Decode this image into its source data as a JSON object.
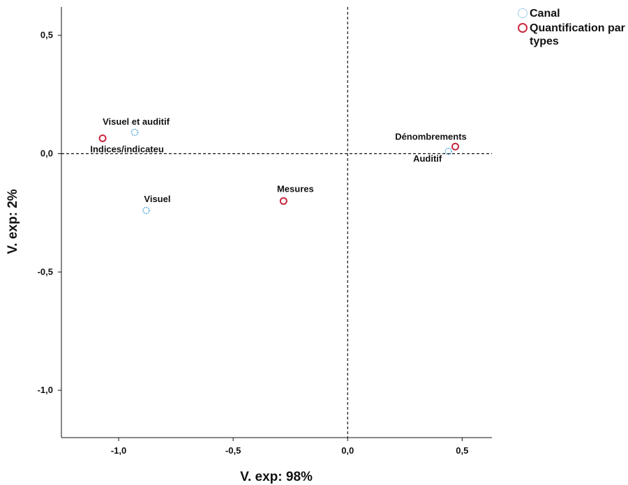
{
  "chart_data": {
    "type": "scatter",
    "title": "",
    "xlabel": "V. exp: 98%",
    "ylabel": "V. exp: 2%",
    "xlim": [
      -1.25,
      0.63
    ],
    "ylim": [
      -1.2,
      0.62
    ],
    "xticks": [
      -1.0,
      -0.5,
      0.0,
      0.5
    ],
    "yticks": [
      0.5,
      0.0,
      -0.5,
      -1.0
    ],
    "xtick_labels": [
      "-1,0",
      "-0,5",
      "0,0",
      "0,5"
    ],
    "ytick_labels": [
      "0,5",
      "0,0",
      "-0,5",
      "-1,0"
    ],
    "reference_lines": {
      "x": 0.0,
      "y": 0.0,
      "style": "dashed"
    },
    "grid": false,
    "legend_position": "top-right",
    "series": [
      {
        "name": "Canal",
        "color": "#3b9ad6",
        "marker": "dotted-circle",
        "points": [
          {
            "label": "Visuel et auditif",
            "x": -0.93,
            "y": 0.09
          },
          {
            "label": "Visuel",
            "x": -0.88,
            "y": -0.24
          },
          {
            "label": "Auditif",
            "x": 0.44,
            "y": 0.01
          }
        ]
      },
      {
        "name": "Quantification par types",
        "color": "#c8283e",
        "marker": "solid-circle",
        "points": [
          {
            "label": "Indices/indicateu",
            "x": -1.07,
            "y": 0.065
          },
          {
            "label": "Mesures",
            "x": -0.28,
            "y": -0.2
          },
          {
            "label": "Dénombrements",
            "x": 0.47,
            "y": 0.03
          }
        ]
      }
    ]
  },
  "legend": {
    "items": [
      {
        "label": "Canal",
        "color": "#3b9ad6"
      },
      {
        "label": "Quantification par types",
        "color": "#c8283e"
      }
    ]
  }
}
